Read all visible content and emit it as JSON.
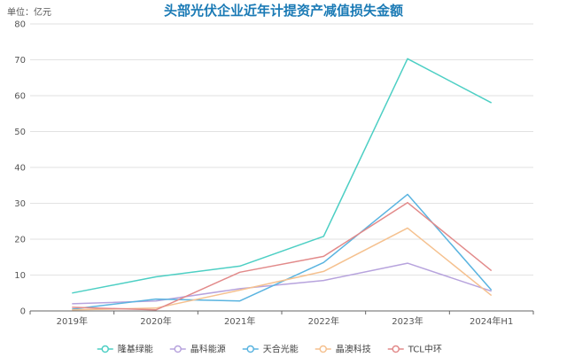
{
  "chart_data": {
    "type": "line",
    "title": "头部光伏企业近年计提资产减值损失金额",
    "unit_label": "单位：亿元",
    "xlabel": "",
    "ylabel": "",
    "categories": [
      "2019年",
      "2020年",
      "2021年",
      "2022年",
      "2023年",
      "2024年H1"
    ],
    "ylim": [
      0,
      80
    ],
    "yticks": [
      0,
      10,
      20,
      30,
      40,
      50,
      60,
      70,
      80
    ],
    "grid": true,
    "legend_position": "bottom",
    "series": [
      {
        "name": "隆基绿能",
        "color": "#4dcfc4",
        "values": [
          5.0,
          9.5,
          12.5,
          20.8,
          70.3,
          58.0
        ]
      },
      {
        "name": "晶科能源",
        "color": "#b7a3dd",
        "values": [
          2.0,
          2.8,
          6.2,
          8.5,
          13.3,
          5.5
        ]
      },
      {
        "name": "天合光能",
        "color": "#5ab4e0",
        "values": [
          0.5,
          3.3,
          2.8,
          13.5,
          32.5,
          5.8
        ]
      },
      {
        "name": "晶澳科技",
        "color": "#f5c18f",
        "values": [
          0.3,
          0.8,
          5.8,
          11.0,
          23.1,
          4.3
        ]
      },
      {
        "name": "TCL中环",
        "color": "#e28a8a",
        "values": [
          1.0,
          0.3,
          10.8,
          15.2,
          30.2,
          11.2
        ]
      }
    ]
  }
}
